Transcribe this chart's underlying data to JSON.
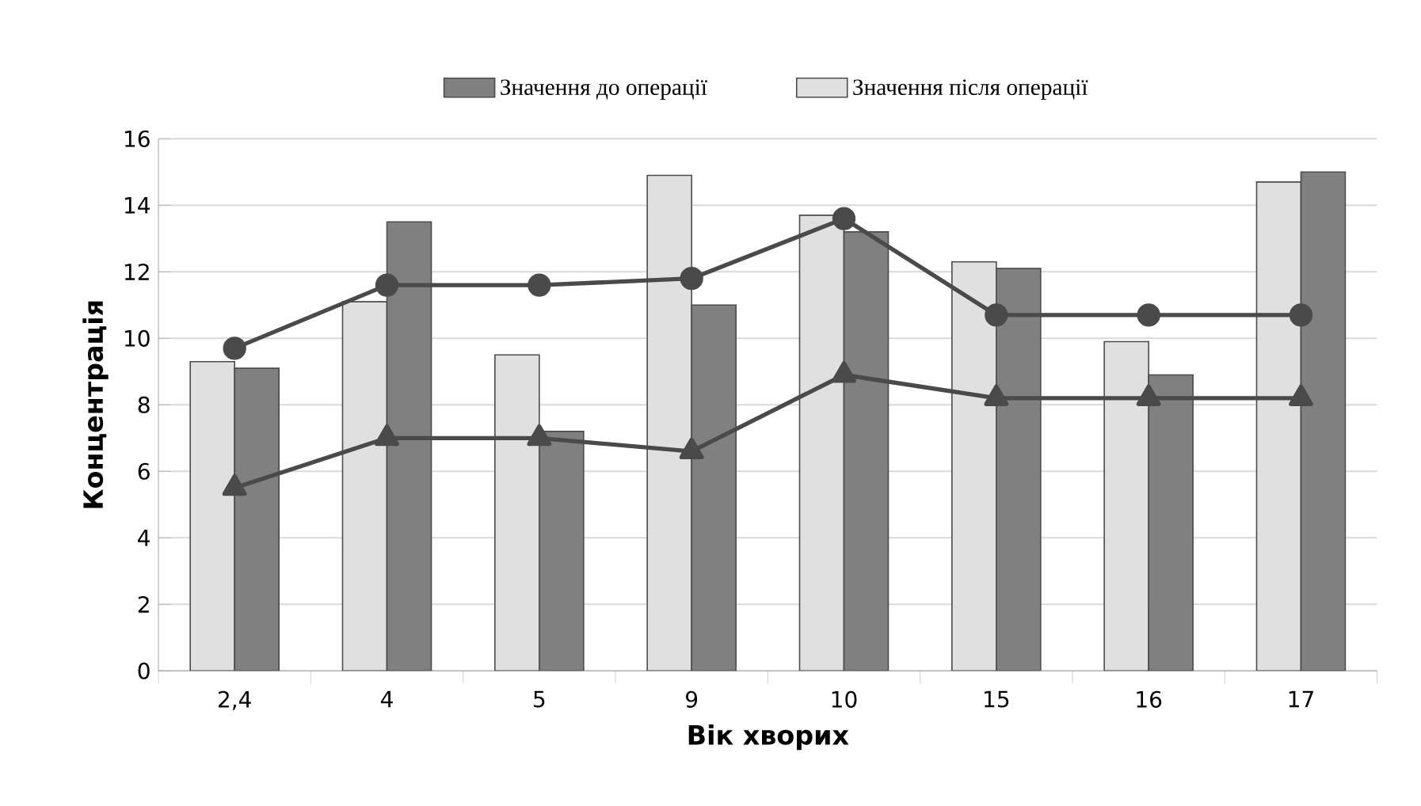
{
  "chart_data": {
    "type": "bar",
    "xlabel": "Вік хворих",
    "ylabel": "Концентрація",
    "categories": [
      "2,4",
      "4",
      "5",
      "9",
      "10",
      "15",
      "16",
      "17"
    ],
    "series": [
      {
        "name": "Значення після операції",
        "color": "#e0e0e0",
        "values": [
          9.3,
          11.1,
          9.5,
          14.9,
          13.7,
          12.3,
          9.9,
          14.7
        ]
      },
      {
        "name": "Значення до операції",
        "color": "#808080",
        "values": [
          9.1,
          13.5,
          7.2,
          11.0,
          13.2,
          12.1,
          8.9,
          15.0
        ]
      },
      {
        "type": "line",
        "marker": "circle",
        "color": "#4a4a4a",
        "values": [
          9.7,
          11.6,
          11.6,
          11.8,
          13.6,
          10.7,
          10.7,
          10.7
        ]
      },
      {
        "type": "line",
        "marker": "triangle",
        "color": "#4a4a4a",
        "values": [
          5.5,
          7.0,
          7.0,
          6.6,
          8.9,
          8.2,
          8.2,
          8.2
        ]
      }
    ],
    "ylim": [
      0,
      16
    ],
    "yticks": [
      0,
      2,
      4,
      6,
      8,
      10,
      12,
      14,
      16
    ],
    "grid": "y",
    "legend": "top"
  }
}
